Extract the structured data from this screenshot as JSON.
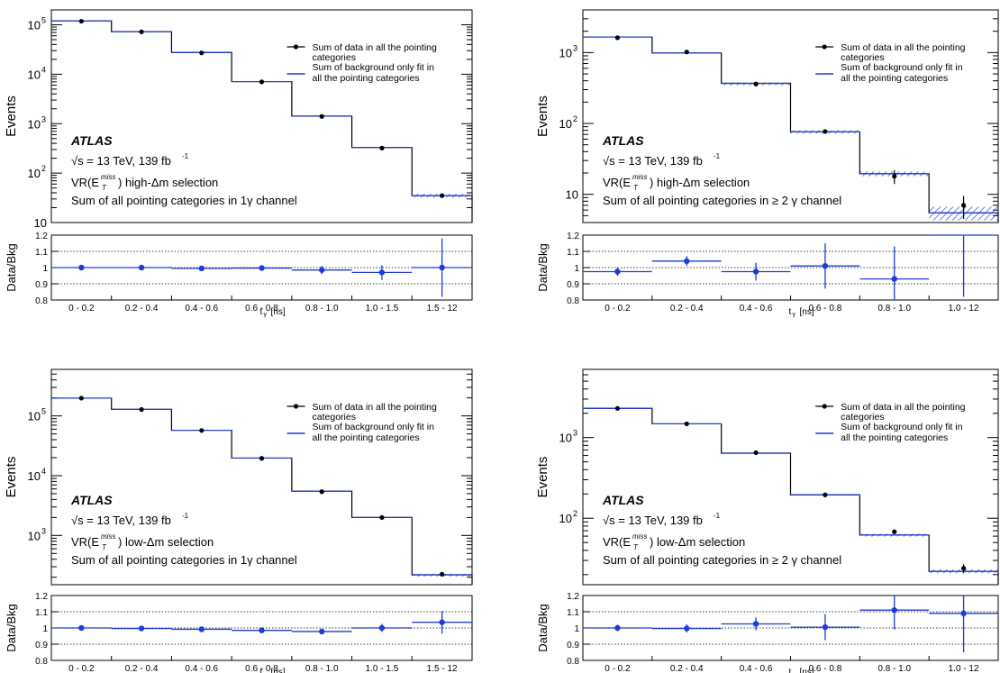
{
  "chart_data": [
    {
      "id": "p1",
      "type": "line",
      "style": "step-histogram",
      "experiment": "ATLAS",
      "energy": "√s = 13 TeV, 139 fb",
      "energy_sup": "-1",
      "selection": "VR(E_T^miss) high-Δm selection",
      "channel": "Sum of all pointing categories in  1γ channel",
      "ylabel": "Events",
      "ratio_ylabel": "Data/Bkg",
      "xlabel": "t_γ [ns]",
      "categories": [
        "0 - 0.2",
        "0.2 - 0.4",
        "0.4 - 0.6",
        "0.6 - 0.8",
        "0.8 - 1.0",
        "1.0 - 1.5",
        "1.5 - 12"
      ],
      "ylim": [
        10,
        200000
      ],
      "log_y": true,
      "ratio_ylim": [
        0.8,
        1.2
      ],
      "ratio_ticks": [
        0.8,
        0.9,
        1,
        1.1,
        1.2
      ],
      "series": [
        {
          "name": "Sum of data in all the pointing categories",
          "values": [
            118000,
            72000,
            27000,
            7000,
            1400,
            320,
            35
          ],
          "errors": [
            0,
            0,
            0,
            0,
            0,
            0,
            3
          ]
        },
        {
          "name": "Sum of background only fit in all the pointing categories",
          "values": [
            120000,
            72500,
            27500,
            7100,
            1420,
            330,
            35
          ],
          "band": [
            0,
            0,
            0,
            0,
            0,
            0,
            3
          ]
        }
      ],
      "ratio": {
        "values": [
          1.0,
          1.0,
          0.995,
          0.997,
          0.985,
          0.97,
          1.0
        ],
        "errors": [
          0.006,
          0.008,
          0.009,
          0.012,
          0.025,
          0.045,
          0.18
        ]
      }
    },
    {
      "id": "p2",
      "type": "line",
      "style": "step-histogram",
      "experiment": "ATLAS",
      "energy": "√s = 13 TeV, 139 fb",
      "energy_sup": "-1",
      "selection": "VR(E_T^miss) high-Δm selection",
      "channel": "Sum of all pointing categories in ≥ 2 γ channel",
      "ylabel": "Events",
      "ratio_ylabel": "Data/Bkg",
      "xlabel": "t_γ [ns]",
      "categories": [
        "0 - 0.2",
        "0.2 - 0.4",
        "0.4 - 0.6",
        "0.6 - 0.8",
        "0.8 - 1.0",
        "1.0 - 12"
      ],
      "ylim": [
        4,
        4000
      ],
      "log_y": true,
      "ratio_ylim": [
        0.8,
        1.2
      ],
      "ratio_ticks": [
        0.8,
        0.9,
        1,
        1.1,
        1.2
      ],
      "series": [
        {
          "name": "Sum of data in all the pointing categories",
          "values": [
            1620,
            1020,
            360,
            77,
            18,
            7
          ],
          "errors": [
            0,
            0,
            0,
            5,
            4,
            2.5
          ]
        },
        {
          "name": "Sum of background only fit in all the pointing categories",
          "values": [
            1660,
            985,
            368,
            76,
            19.5,
            5.5
          ],
          "band": [
            0,
            0,
            10,
            4,
            1.5,
            1.2
          ]
        }
      ],
      "ratio": {
        "values": [
          0.975,
          1.04,
          0.975,
          1.01,
          0.93,
          1.27
        ],
        "errors": [
          0.025,
          0.03,
          0.055,
          0.14,
          0.2,
          0.45
        ]
      }
    },
    {
      "id": "p3",
      "type": "line",
      "style": "step-histogram",
      "experiment": "ATLAS",
      "energy": "√s = 13 TeV, 139 fb",
      "energy_sup": "-1",
      "selection": "VR(E_T^miss) low-Δm selection",
      "channel": "Sum of all pointing categories in  1γ channel",
      "ylabel": "Events",
      "ratio_ylabel": "Data/Bkg",
      "xlabel": "t_γ [ns]",
      "categories": [
        "0 - 0.2",
        "0.2 - 0.4",
        "0.4 - 0.6",
        "0.6 - 0.8",
        "0.8 - 1.0",
        "1.0 - 1.5",
        "1.5 - 12"
      ],
      "ylim": [
        150,
        600000
      ],
      "log_y": true,
      "ratio_ylim": [
        0.8,
        1.2
      ],
      "ratio_ticks": [
        0.8,
        0.9,
        1,
        1.1,
        1.2
      ],
      "series": [
        {
          "name": "Sum of data in all the pointing categories",
          "values": [
            198000,
            128000,
            57000,
            19500,
            5400,
            2000,
            225
          ],
          "errors": [
            0,
            0,
            0,
            0,
            0,
            0,
            8
          ]
        },
        {
          "name": "Sum of background only fit in all the pointing categories",
          "values": [
            198000,
            128500,
            57500,
            19700,
            5500,
            2000,
            220
          ],
          "band": [
            0,
            0,
            0,
            0,
            0,
            0,
            8
          ]
        }
      ],
      "ratio": {
        "values": [
          1.0,
          0.997,
          0.992,
          0.985,
          0.978,
          1.0,
          1.035
        ],
        "errors": [
          0.004,
          0.005,
          0.006,
          0.01,
          0.014,
          0.025,
          0.07
        ]
      }
    },
    {
      "id": "p4",
      "type": "line",
      "style": "step-histogram",
      "experiment": "ATLAS",
      "energy": "√s = 13 TeV, 139 fb",
      "energy_sup": "-1",
      "selection": "VR(E_T^miss) low-Δm selection",
      "channel": "Sum of all pointing categories in ≥ 2 γ channel",
      "ylabel": "Events",
      "ratio_ylabel": "Data/Bkg",
      "xlabel": "t_γ [ns]",
      "categories": [
        "0 - 0.2",
        "0.2 - 0.4",
        "0.4 - 0.6",
        "0.6 - 0.8",
        "0.8 - 1.0",
        "1.0 - 12"
      ],
      "ylim": [
        15,
        7000
      ],
      "log_y": true,
      "ratio_ylim": [
        0.8,
        1.2
      ],
      "ratio_ticks": [
        0.8,
        0.9,
        1,
        1.1,
        1.2
      ],
      "series": [
        {
          "name": "Sum of data in all the pointing categories",
          "values": [
            2300,
            1480,
            650,
            195,
            68,
            24
          ],
          "errors": [
            0,
            0,
            0,
            0,
            4,
            3
          ]
        },
        {
          "name": "Sum of background only fit in all the pointing categories",
          "values": [
            2300,
            1480,
            640,
            195,
            62,
            22
          ],
          "band": [
            0,
            0,
            0,
            0,
            2,
            1.2
          ]
        }
      ],
      "ratio": {
        "values": [
          1.0,
          0.997,
          1.025,
          1.005,
          1.11,
          1.09
        ],
        "errors": [
          0.02,
          0.025,
          0.04,
          0.08,
          0.12,
          0.24
        ]
      }
    }
  ]
}
